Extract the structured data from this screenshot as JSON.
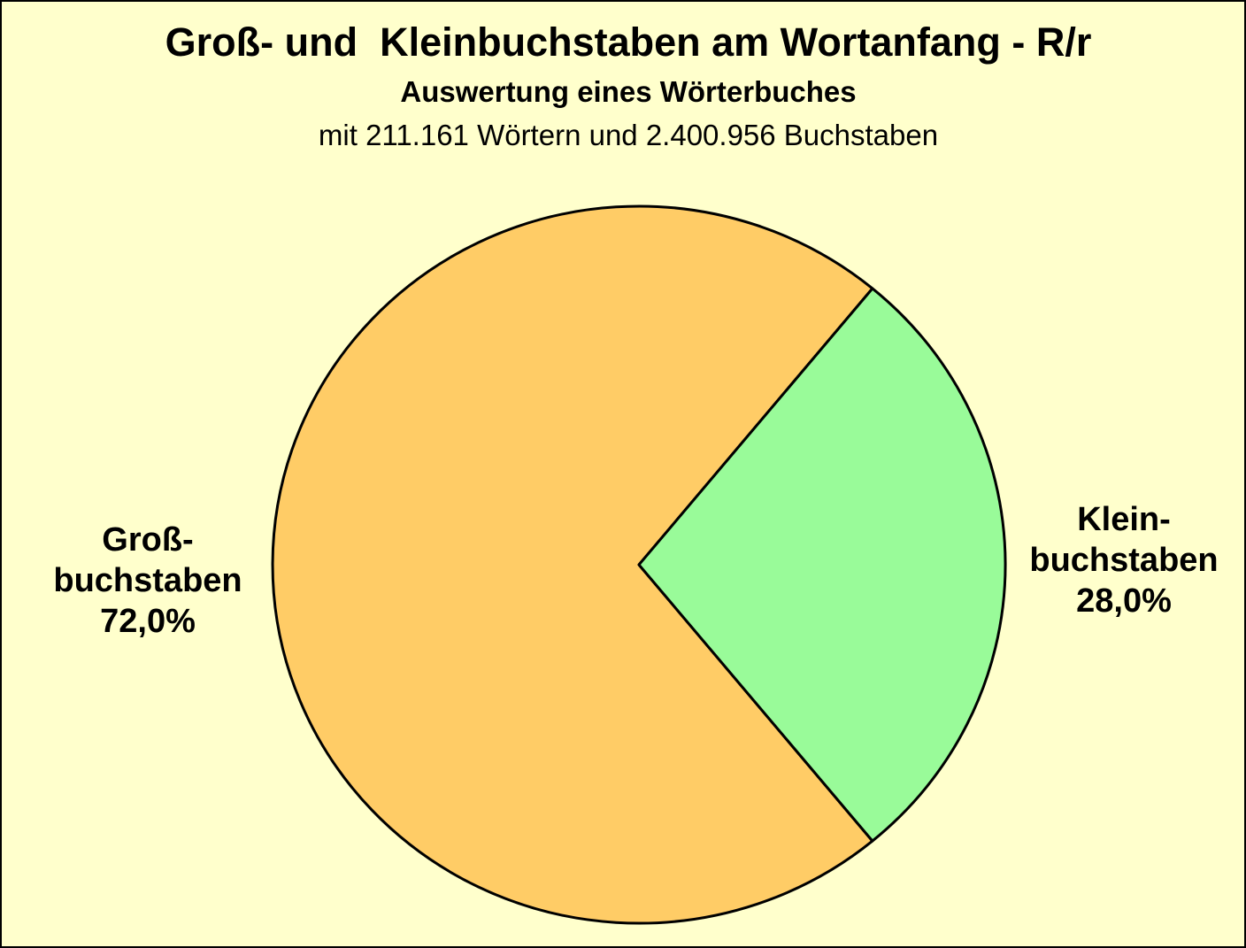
{
  "header": {
    "title": "Groß- und  Kleinbuchstaben am Wortanfang - R/r",
    "subtitle": "Auswertung eines Wörterbuches",
    "note": "mit 211.161 Wörtern und 2.400.956 Buchstaben"
  },
  "chart_data": {
    "type": "pie",
    "title": "Groß- und  Kleinbuchstaben am Wortanfang - R/r",
    "subtitle": "Auswertung eines Wörterbuches",
    "note": "mit 211.161 Wörtern und 2.400.956 Buchstaben",
    "word_count_label": "211.161",
    "letter_count_label": "2.400.956",
    "slices": [
      {
        "label": "Großbuchstaben",
        "value_pct": 72.0,
        "display_pct": "72,0%",
        "color": "#FFCC66",
        "label_lines": [
          "Groß-",
          "buchstaben",
          "72,0%"
        ]
      },
      {
        "label": "Kleinbuchstaben",
        "value_pct": 28.0,
        "display_pct": "28,0%",
        "color": "#99FB99",
        "label_lines": [
          "Klein-",
          "buchstaben",
          "28,0%"
        ]
      }
    ],
    "background_color": "#FFFFCC",
    "outline_color": "#000000",
    "layout": {
      "legend": "none",
      "labels_position": "outside",
      "small_slice_centered_on": "east"
    }
  }
}
